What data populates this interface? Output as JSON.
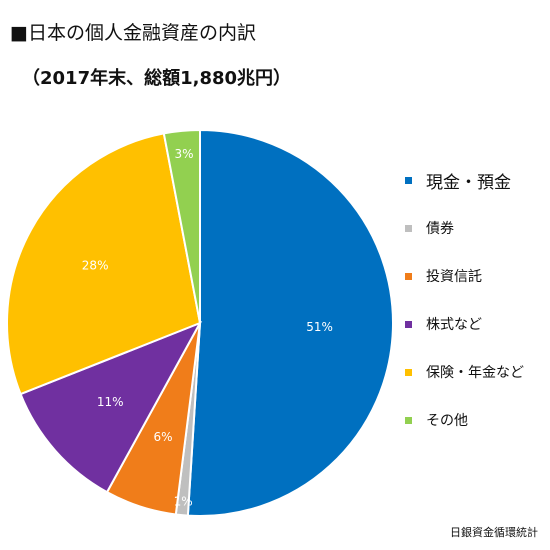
{
  "header": {
    "title": "■日本の個人金融資産の内訳",
    "subtitle": "（2017年末、総額1,880兆円）"
  },
  "source_note": "日銀資金循環統計",
  "chart_data": {
    "type": "pie",
    "title": "■日本の個人金融資産の内訳",
    "subtitle": "（2017年末、総額1,880兆円）",
    "legend_position": "right",
    "slices": [
      {
        "label": "現金・預金",
        "value": 51,
        "value_label": "51%",
        "color": "#0070C0"
      },
      {
        "label": "債券",
        "value": 1,
        "value_label": "1%",
        "color": "#BFBFBF"
      },
      {
        "label": "投資信託",
        "value": 6,
        "value_label": "6%",
        "color": "#F07D1A"
      },
      {
        "label": "株式など",
        "value": 11,
        "value_label": "11%",
        "color": "#7030A0"
      },
      {
        "label": "保険・年金など",
        "value": 28,
        "value_label": "28%",
        "color": "#FFC000"
      },
      {
        "label": "その他",
        "value": 3,
        "value_label": "3%",
        "color": "#92D050"
      }
    ]
  }
}
